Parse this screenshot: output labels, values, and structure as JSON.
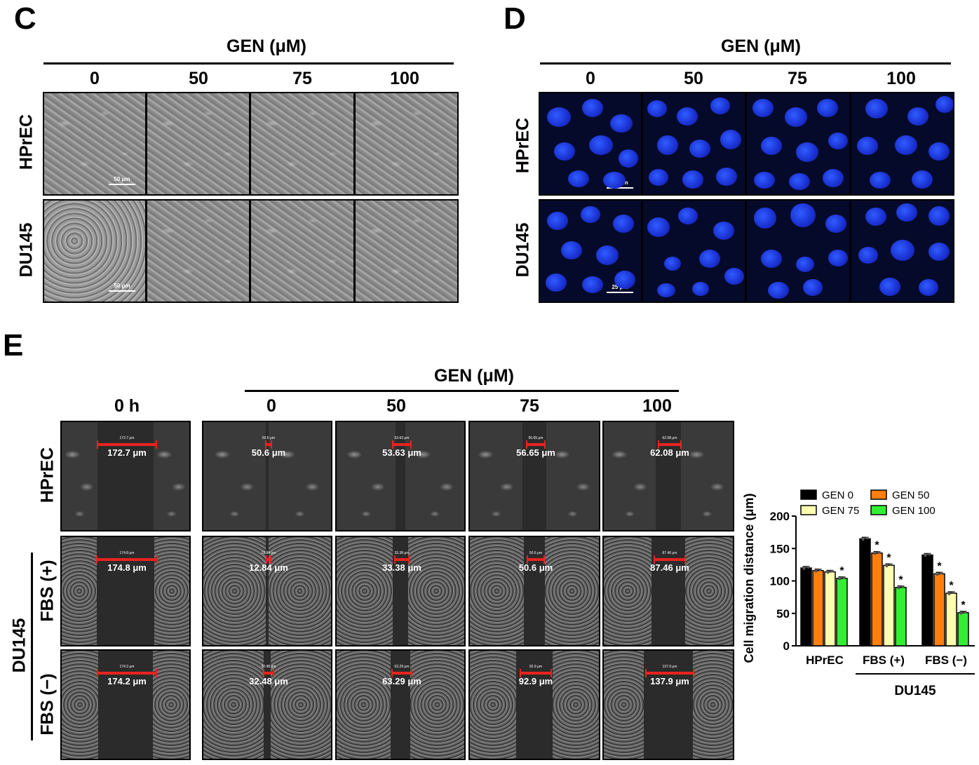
{
  "panels": {
    "C": {
      "label": "C",
      "title": "GEN (μM)",
      "concentrations": [
        "0",
        "50",
        "75",
        "100"
      ],
      "rows": [
        "HPrEC",
        "DU145"
      ],
      "scale": "50 μm"
    },
    "D": {
      "label": "D",
      "title": "GEN (μM)",
      "concentrations": [
        "0",
        "50",
        "75",
        "100"
      ],
      "rows": [
        "HPrEC",
        "DU145"
      ],
      "scale": "25 μm"
    },
    "E": {
      "label": "E",
      "title": "GEN (μM)",
      "time_label": "0 h",
      "concentrations": [
        "0",
        "50",
        "75",
        "100"
      ],
      "rows": [
        "HPrEC",
        "FBS (+)",
        "FBS (−)"
      ],
      "group_label": "DU145",
      "distances": [
        [
          "172.7 μm",
          "50.6 μm",
          "53.63 μm",
          "56.65 μm",
          "62.08 μm"
        ],
        [
          "174.8 μm",
          "12.84 μm",
          "33.38 μm",
          "50.6 μm",
          "87.46 μm"
        ],
        [
          "174.2 μm",
          "32.48 μm",
          "63.29 μm",
          "92.9 μm",
          "137.9 μm"
        ]
      ]
    }
  },
  "chart_data": {
    "type": "bar",
    "categories": [
      "HPrEC",
      "FBS (+)",
      "FBS (−)"
    ],
    "group_label": "DU145",
    "ylabel": "Cell migration distance (μm)",
    "ylim": [
      0,
      200
    ],
    "yticks": [
      "0",
      "50",
      "100",
      "150",
      "200"
    ],
    "series": [
      {
        "name": "GEN 0",
        "color": "#000000",
        "values": [
          120,
          165,
          140
        ],
        "significant": [
          false,
          false,
          false
        ]
      },
      {
        "name": "GEN 50",
        "color": "#ff7f0e",
        "values": [
          116,
          143,
          111
        ],
        "significant": [
          false,
          true,
          true
        ]
      },
      {
        "name": "GEN 75",
        "color": "#ffffb0",
        "values": [
          114,
          124,
          81
        ],
        "significant": [
          false,
          true,
          true
        ]
      },
      {
        "name": "GEN 100",
        "color": "#33ee33",
        "values": [
          104,
          90,
          51
        ],
        "significant": [
          true,
          true,
          true
        ]
      }
    ],
    "significance_marker": "*",
    "legend_position": "top"
  }
}
